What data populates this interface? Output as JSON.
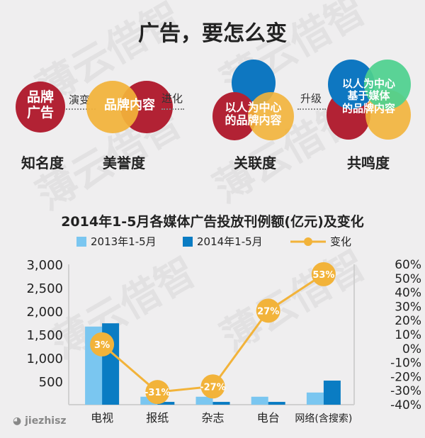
{
  "title": "广告，要怎么变",
  "stages": [
    {
      "circle_text": [
        "品牌",
        "广告"
      ],
      "level": "知名度"
    },
    {
      "circle_text": "品牌内容",
      "level": "美誉度"
    },
    {
      "circle_text": [
        "以人为中心",
        "的品牌内容"
      ],
      "level": "关联度"
    },
    {
      "circle_text": [
        "以人为中心",
        "基于媒体",
        "的品牌内容"
      ],
      "level": "共鸣度"
    }
  ],
  "arrows": [
    "演变",
    "进化",
    "升级"
  ],
  "watermark": "薄云借智",
  "logo": "jiezhisz",
  "colors": {
    "red": "#b22234",
    "yellow": "#f2b33a",
    "blue": "#0e77c1",
    "green": "#4dd08e",
    "light_blue": "#7ac6f0",
    "dark_blue": "#0a7cc3"
  },
  "chart_data": {
    "type": "bar+line",
    "title": "2014年1-5月各媒体广告投放刊例额(亿元)及变化",
    "categories": [
      "电视",
      "报纸",
      "杂志",
      "电台",
      "网络(含搜索)"
    ],
    "series": [
      {
        "name": "2013年1-5月",
        "type": "bar",
        "axis": "left",
        "values": [
          1670,
          170,
          170,
          170,
          260
        ]
      },
      {
        "name": "2014年1-5月",
        "type": "bar",
        "axis": "left",
        "values": [
          1740,
          60,
          60,
          60,
          515
        ]
      },
      {
        "name": "变化",
        "type": "line",
        "axis": "right",
        "values": [
          3,
          -31,
          -27,
          27,
          53
        ],
        "labels": [
          "3%",
          "-31%",
          "-27%",
          "27%",
          "53%"
        ]
      }
    ],
    "y_left": {
      "ylim": [
        0,
        3000
      ],
      "ticks": [
        "500",
        "1,000",
        "1,500",
        "2,000",
        "2,500",
        "3,000"
      ],
      "tick_values": [
        500,
        1000,
        1500,
        2000,
        2500,
        3000
      ]
    },
    "y_right": {
      "ylim": [
        -40,
        60
      ],
      "ticks": [
        "-40%",
        "-30%",
        "-20%",
        "-10%",
        "0%",
        "10%",
        "20%",
        "30%",
        "40%",
        "50%",
        "60%"
      ],
      "tick_values": [
        -40,
        -30,
        -20,
        -10,
        0,
        10,
        20,
        30,
        40,
        50,
        60
      ]
    },
    "legend": "top",
    "grid": false
  }
}
